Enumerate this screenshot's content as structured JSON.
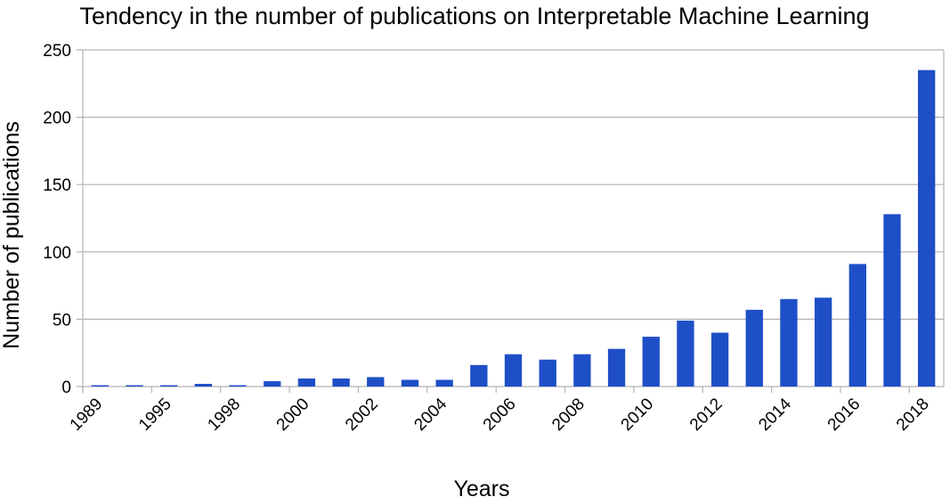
{
  "chart_data": {
    "type": "bar",
    "title": "Tendency in the number of publications on Interpretable Machine Learning",
    "xlabel": "Years",
    "ylabel": "Number of publications",
    "ylim": [
      0,
      250
    ],
    "yticks": [
      0,
      50,
      100,
      150,
      200,
      250
    ],
    "grid": "horizontal",
    "legend": "none",
    "bar_color": "#1f4fc7",
    "grid_color": "#b3b3b3",
    "x_tick_labels": [
      "1989",
      "1995",
      "1998",
      "2000",
      "2002",
      "2004",
      "2006",
      "2008",
      "2010",
      "2012",
      "2014",
      "2016",
      "2018"
    ],
    "values": [
      1,
      1,
      1,
      2,
      1,
      4,
      6,
      6,
      7,
      5,
      5,
      16,
      24,
      20,
      24,
      28,
      37,
      49,
      40,
      57,
      65,
      66,
      91,
      128,
      235
    ]
  }
}
